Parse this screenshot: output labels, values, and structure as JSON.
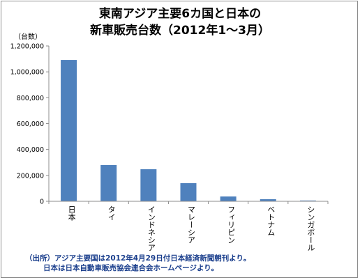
{
  "chart_data": {
    "type": "bar",
    "title_line1": "東南アジア主要6カ国と日本の",
    "title_line2": "新車販売台数（2012年1～3月）",
    "ylabel": "（台数）",
    "xlabel": "",
    "ylim": [
      0,
      1200000
    ],
    "yticks": [
      0,
      200000,
      400000,
      600000,
      800000,
      1000000,
      1200000
    ],
    "ytick_labels": [
      "0",
      "200,000",
      "400,000",
      "600,000",
      "800,000",
      "1,000,000",
      "1,200,000"
    ],
    "categories": [
      "日本",
      "タイ",
      "インドネシア",
      "マレーシア",
      "フィリピン",
      "ベトナム",
      "シンガポール"
    ],
    "values": [
      1092000,
      280000,
      248000,
      140000,
      37000,
      16000,
      6000
    ],
    "bar_color": "#4f81bd",
    "grid": false,
    "legend": "none"
  },
  "footnote": {
    "line1": "（出所）アジア主要国は2012年4月29日付日本経済新聞朝刊より。",
    "line2": "日本は日本自動車販売協会連合会ホームページより。",
    "color": "#1a3e8c"
  }
}
